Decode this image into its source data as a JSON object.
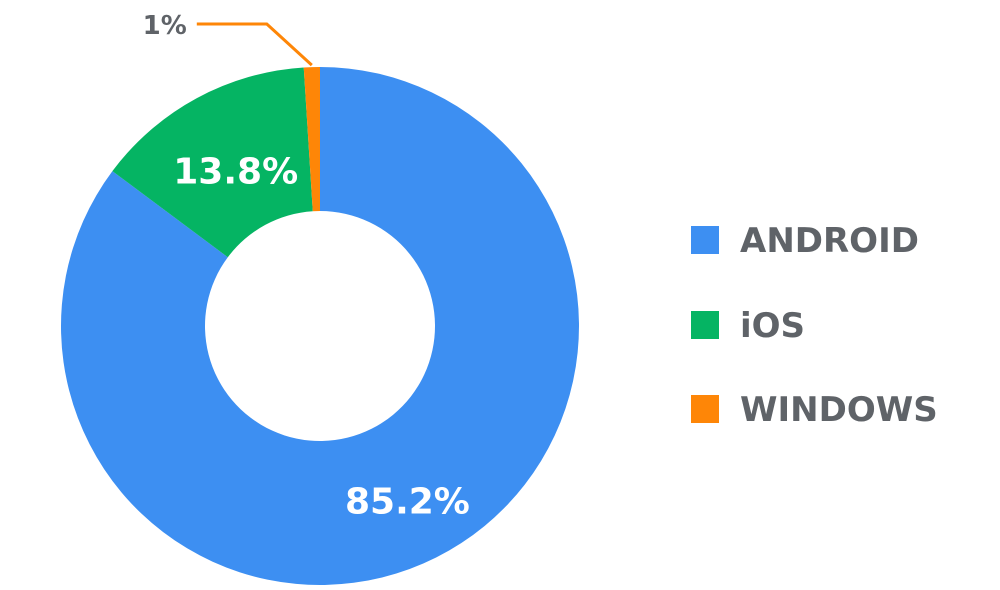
{
  "chart_data": {
    "type": "pie",
    "donut": true,
    "categories": [
      "ANDROID",
      "iOS",
      "WINDOWS"
    ],
    "values": [
      85.2,
      13.8,
      1
    ],
    "labels": [
      "85.2%",
      "13.8%",
      "1%"
    ],
    "colors": [
      "#3d8ff2",
      "#05b463",
      "#fe8607"
    ],
    "legend_position": "right"
  }
}
